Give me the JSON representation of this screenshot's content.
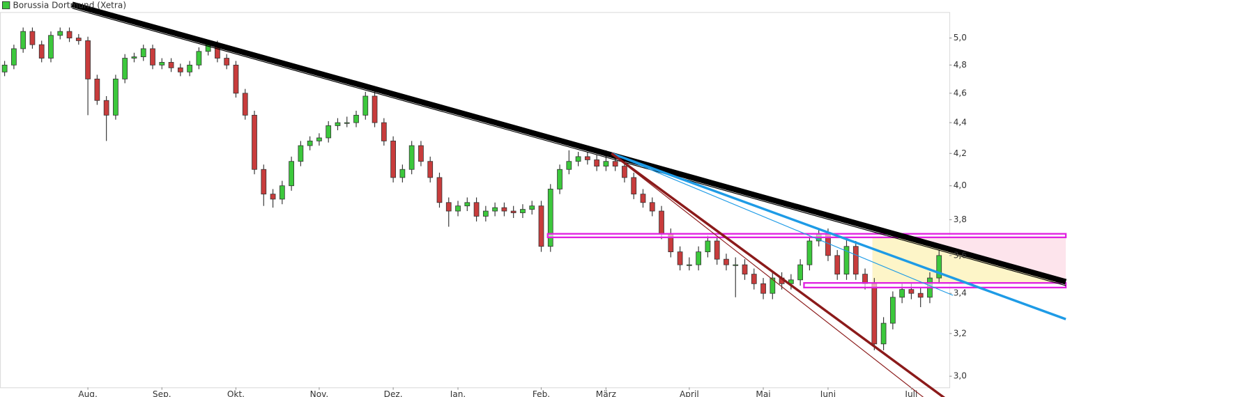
{
  "chart_data": {
    "type": "candlestick",
    "title": "Borussia Dortmund (Xetra)",
    "legend_color": "#3cc83c",
    "up_color": "#3cc83c",
    "down_color": "#c83c3c",
    "log_y": true,
    "ylim": [
      2.95,
      5.2
    ],
    "yticks": [
      {
        "value": 3.0,
        "label": "3,0"
      },
      {
        "value": 3.2,
        "label": "3,2"
      },
      {
        "value": 3.4,
        "label": "3,4"
      },
      {
        "value": 3.6,
        "label": "3,6"
      },
      {
        "value": 3.8,
        "label": "3,8"
      },
      {
        "value": 4.0,
        "label": "4,0"
      },
      {
        "value": 4.2,
        "label": "4,2"
      },
      {
        "value": 4.4,
        "label": "4,4"
      },
      {
        "value": 4.6,
        "label": "4,6"
      },
      {
        "value": 4.8,
        "label": "4,8"
      },
      {
        "value": 5.0,
        "label": "5,0"
      }
    ],
    "categories": [
      null,
      null,
      null,
      null,
      null,
      null,
      null,
      null,
      null,
      "Aug.",
      null,
      null,
      null,
      null,
      null,
      null,
      null,
      "Sep.",
      null,
      null,
      null,
      null,
      null,
      null,
      null,
      "Okt.",
      null,
      null,
      null,
      null,
      null,
      null,
      null,
      null,
      "Nov.",
      null,
      null,
      null,
      null,
      null,
      null,
      null,
      "Dez.",
      null,
      null,
      null,
      null,
      null,
      null,
      "Jan.",
      null,
      null,
      null,
      null,
      null,
      null,
      null,
      null,
      "Feb.",
      null,
      null,
      null,
      null,
      null,
      null,
      "März",
      null,
      null,
      null,
      null,
      null,
      null,
      null,
      null,
      "April",
      null,
      null,
      null,
      null,
      null,
      null,
      null,
      "Mai",
      null,
      null,
      null,
      null,
      null,
      null,
      "Juni",
      null,
      null,
      null,
      null,
      null,
      null,
      null,
      null,
      "Juli",
      null,
      null,
      null
    ],
    "candles": [
      [
        4.75,
        4.83,
        4.72,
        4.8
      ],
      [
        4.8,
        4.95,
        4.77,
        4.92
      ],
      [
        4.92,
        5.08,
        4.89,
        5.05
      ],
      [
        5.05,
        5.08,
        4.92,
        4.95
      ],
      [
        4.95,
        4.98,
        4.82,
        4.85
      ],
      [
        4.85,
        5.05,
        4.82,
        5.02
      ],
      [
        5.02,
        5.08,
        4.99,
        5.05
      ],
      [
        5.05,
        5.08,
        4.97,
        5.0
      ],
      [
        5.0,
        5.03,
        4.95,
        4.98
      ],
      [
        4.98,
        5.01,
        4.45,
        4.7
      ],
      [
        4.7,
        4.73,
        4.52,
        4.55
      ],
      [
        4.55,
        4.58,
        4.28,
        4.45
      ],
      [
        4.45,
        4.73,
        4.42,
        4.7
      ],
      [
        4.7,
        4.88,
        4.67,
        4.85
      ],
      [
        4.85,
        4.89,
        4.82,
        4.86
      ],
      [
        4.86,
        4.95,
        4.83,
        4.92
      ],
      [
        4.92,
        4.95,
        4.77,
        4.8
      ],
      [
        4.8,
        4.85,
        4.77,
        4.82
      ],
      [
        4.82,
        4.85,
        4.75,
        4.78
      ],
      [
        4.78,
        4.81,
        4.72,
        4.75
      ],
      [
        4.75,
        4.83,
        4.72,
        4.8
      ],
      [
        4.8,
        4.93,
        4.77,
        4.9
      ],
      [
        4.9,
        4.98,
        4.87,
        4.95
      ],
      [
        4.95,
        4.98,
        4.82,
        4.85
      ],
      [
        4.85,
        4.88,
        4.77,
        4.8
      ],
      [
        4.8,
        4.83,
        4.57,
        4.6
      ],
      [
        4.6,
        4.63,
        4.42,
        4.45
      ],
      [
        4.45,
        4.48,
        4.07,
        4.1
      ],
      [
        4.1,
        4.13,
        3.88,
        3.95
      ],
      [
        3.95,
        3.98,
        3.87,
        3.92
      ],
      [
        3.92,
        4.03,
        3.89,
        4.0
      ],
      [
        4.0,
        4.18,
        3.97,
        4.15
      ],
      [
        4.15,
        4.28,
        4.12,
        4.25
      ],
      [
        4.25,
        4.31,
        4.22,
        4.28
      ],
      [
        4.28,
        4.33,
        4.25,
        4.3
      ],
      [
        4.3,
        4.41,
        4.27,
        4.38
      ],
      [
        4.38,
        4.43,
        4.35,
        4.4
      ],
      [
        4.4,
        4.44,
        4.37,
        4.4
      ],
      [
        4.4,
        4.48,
        4.37,
        4.45
      ],
      [
        4.45,
        4.61,
        4.42,
        4.58
      ],
      [
        4.58,
        4.61,
        4.37,
        4.4
      ],
      [
        4.4,
        4.43,
        4.25,
        4.28
      ],
      [
        4.28,
        4.31,
        4.02,
        4.05
      ],
      [
        4.05,
        4.13,
        4.02,
        4.1
      ],
      [
        4.1,
        4.28,
        4.07,
        4.25
      ],
      [
        4.25,
        4.28,
        4.12,
        4.15
      ],
      [
        4.15,
        4.18,
        4.02,
        4.05
      ],
      [
        4.05,
        4.08,
        3.87,
        3.9
      ],
      [
        3.9,
        3.93,
        3.76,
        3.85
      ],
      [
        3.85,
        3.91,
        3.82,
        3.88
      ],
      [
        3.88,
        3.93,
        3.85,
        3.9
      ],
      [
        3.9,
        3.93,
        3.79,
        3.82
      ],
      [
        3.82,
        3.88,
        3.79,
        3.85
      ],
      [
        3.85,
        3.9,
        3.82,
        3.87
      ],
      [
        3.87,
        3.9,
        3.82,
        3.85
      ],
      [
        3.85,
        3.88,
        3.81,
        3.84
      ],
      [
        3.84,
        3.89,
        3.81,
        3.86
      ],
      [
        3.86,
        3.91,
        3.83,
        3.88
      ],
      [
        3.88,
        3.91,
        3.62,
        3.65
      ],
      [
        3.65,
        4.01,
        3.62,
        3.98
      ],
      [
        3.98,
        4.13,
        3.95,
        4.1
      ],
      [
        4.1,
        4.22,
        4.07,
        4.15
      ],
      [
        4.15,
        4.21,
        4.12,
        4.18
      ],
      [
        4.18,
        4.21,
        4.13,
        4.16
      ],
      [
        4.16,
        4.19,
        4.09,
        4.12
      ],
      [
        4.12,
        4.22,
        4.09,
        4.15
      ],
      [
        4.15,
        4.18,
        4.09,
        4.12
      ],
      [
        4.12,
        4.15,
        4.02,
        4.05
      ],
      [
        4.05,
        4.08,
        3.92,
        3.95
      ],
      [
        3.95,
        3.98,
        3.87,
        3.9
      ],
      [
        3.9,
        3.93,
        3.82,
        3.85
      ],
      [
        3.85,
        3.88,
        3.69,
        3.72
      ],
      [
        3.72,
        3.75,
        3.59,
        3.62
      ],
      [
        3.62,
        3.65,
        3.52,
        3.55
      ],
      [
        3.55,
        3.59,
        3.52,
        3.55
      ],
      [
        3.55,
        3.65,
        3.52,
        3.62
      ],
      [
        3.62,
        3.71,
        3.59,
        3.68
      ],
      [
        3.68,
        3.71,
        3.55,
        3.58
      ],
      [
        3.58,
        3.61,
        3.52,
        3.55
      ],
      [
        3.55,
        3.59,
        3.38,
        3.55
      ],
      [
        3.55,
        3.58,
        3.47,
        3.5
      ],
      [
        3.5,
        3.53,
        3.42,
        3.45
      ],
      [
        3.45,
        3.48,
        3.37,
        3.4
      ],
      [
        3.4,
        3.51,
        3.37,
        3.48
      ],
      [
        3.48,
        3.51,
        3.42,
        3.45
      ],
      [
        3.45,
        3.5,
        3.42,
        3.47
      ],
      [
        3.47,
        3.58,
        3.44,
        3.55
      ],
      [
        3.55,
        3.71,
        3.52,
        3.68
      ],
      [
        3.68,
        3.75,
        3.65,
        3.72
      ],
      [
        3.72,
        3.75,
        3.57,
        3.6
      ],
      [
        3.6,
        3.63,
        3.47,
        3.5
      ],
      [
        3.5,
        3.7,
        3.47,
        3.65
      ],
      [
        3.65,
        3.68,
        3.47,
        3.5
      ],
      [
        3.5,
        3.53,
        3.42,
        3.45
      ],
      [
        3.45,
        3.48,
        3.12,
        3.15
      ],
      [
        3.15,
        3.28,
        3.12,
        3.25
      ],
      [
        3.25,
        3.41,
        3.22,
        3.38
      ],
      [
        3.38,
        3.45,
        3.35,
        3.42
      ],
      [
        3.42,
        3.45,
        3.37,
        3.4
      ],
      [
        3.4,
        3.43,
        3.33,
        3.38
      ],
      [
        3.38,
        3.51,
        3.35,
        3.48
      ],
      [
        3.48,
        3.63,
        3.45,
        3.6
      ]
    ],
    "zones": [
      {
        "color": "#fde4ec",
        "points": [
          [
            93.8,
            3.7
          ],
          [
            114.7,
            3.7
          ],
          [
            114.7,
            3.454
          ],
          [
            93.8,
            3.454
          ]
        ]
      },
      {
        "color": "#fdf5c8",
        "points": [
          [
            93.8,
            3.7
          ],
          [
            97.9,
            3.7
          ],
          [
            114.7,
            3.46
          ],
          [
            114.7,
            3.454
          ],
          [
            93.8,
            3.454
          ]
        ]
      }
    ],
    "bands": [
      {
        "color": "#e020e0",
        "from": 58.7,
        "to": 114.7,
        "low": 3.7,
        "high": 3.72
      },
      {
        "color": "#e020e0",
        "from": 86.4,
        "to": 114.7,
        "low": 3.43,
        "high": 3.454
      }
    ],
    "trendlines": [
      {
        "color": "#000000",
        "width": 7,
        "points": [
          [
            7.3,
            5.26
          ],
          [
            114.7,
            3.46
          ]
        ]
      },
      {
        "color": "#000000",
        "width": 1,
        "points": [
          [
            7.3,
            5.23
          ],
          [
            114.7,
            3.44
          ]
        ]
      },
      {
        "color": "#1e9be6",
        "width": 3,
        "points": [
          [
            65.6,
            4.2
          ],
          [
            114.7,
            3.27
          ]
        ]
      },
      {
        "color": "#1e9be6",
        "width": 1,
        "points": [
          [
            65.6,
            4.2
          ],
          [
            102.5,
            3.39
          ]
        ]
      },
      {
        "color": "#8b1a1a",
        "width": 3,
        "points": [
          [
            65.6,
            4.2
          ],
          [
            101.7,
            2.9
          ]
        ]
      },
      {
        "color": "#8b1a1a",
        "width": 1,
        "points": [
          [
            66.0,
            4.18
          ],
          [
            99.5,
            2.9
          ]
        ]
      }
    ]
  }
}
